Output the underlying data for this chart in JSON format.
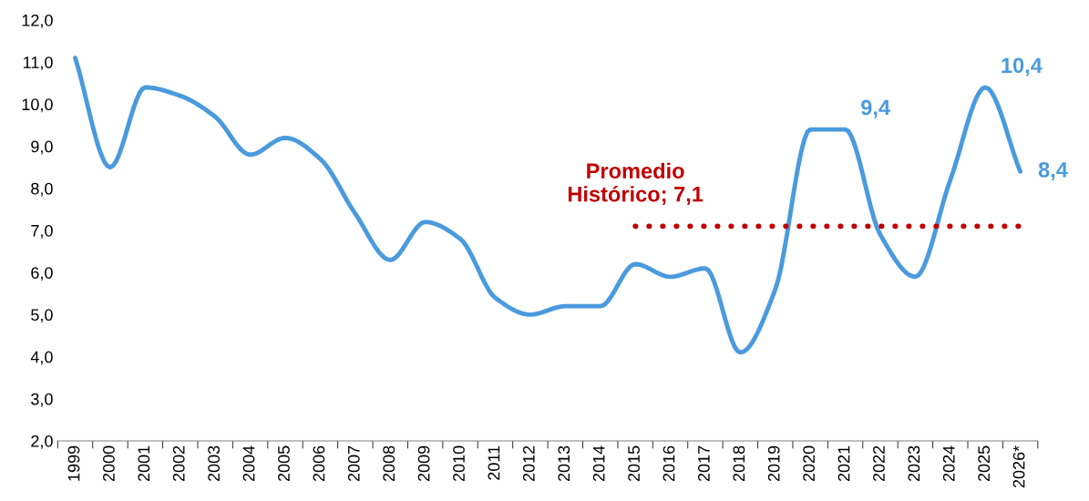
{
  "chart_data": {
    "type": "line",
    "categories": [
      "1999",
      "2000",
      "2001",
      "2002",
      "2003",
      "2004",
      "2005",
      "2006",
      "2007",
      "2008",
      "2009",
      "2010",
      "2011",
      "2012",
      "2013",
      "2014",
      "2015",
      "2016",
      "2017",
      "2018",
      "2019",
      "2020",
      "2021",
      "2022",
      "2023",
      "2024",
      "2025",
      "2026*"
    ],
    "series": [
      {
        "color": "#4a9ade",
        "line_style": "solid",
        "values": [
          11.1,
          8.5,
          10.4,
          10.2,
          9.7,
          8.8,
          9.2,
          8.7,
          7.4,
          6.3,
          7.2,
          6.8,
          5.4,
          5.0,
          5.2,
          5.2,
          6.2,
          5.9,
          6.1,
          4.1,
          5.6,
          9.4,
          9.4,
          6.9,
          5.9,
          8.2,
          10.4,
          8.4
        ],
        "value_labels": [
          null,
          null,
          null,
          null,
          null,
          null,
          null,
          null,
          null,
          null,
          null,
          null,
          null,
          null,
          null,
          null,
          null,
          null,
          null,
          null,
          null,
          null,
          "9,4",
          null,
          null,
          null,
          "10,4",
          "8,4"
        ]
      },
      {
        "name": "Promedio\nHistórico; 7,1",
        "color": "#c00000",
        "line_style": "dotted",
        "values": [
          null,
          null,
          null,
          null,
          null,
          null,
          null,
          null,
          null,
          null,
          null,
          null,
          null,
          null,
          null,
          null,
          7.1,
          7.1,
          7.1,
          7.1,
          7.1,
          7.1,
          7.1,
          7.1,
          7.1,
          7.1,
          7.1,
          7.1
        ]
      }
    ],
    "ylim": [
      2.0,
      12.0
    ],
    "yticks": [
      {
        "value": 2,
        "label": "2,0"
      },
      {
        "value": 3,
        "label": "3,0"
      },
      {
        "value": 4,
        "label": "4,0"
      },
      {
        "value": 5,
        "label": "5,0"
      },
      {
        "value": 6,
        "label": "6,0"
      },
      {
        "value": 7,
        "label": "7,0"
      },
      {
        "value": 8,
        "label": "8,0"
      },
      {
        "value": 9,
        "label": "9,0"
      },
      {
        "value": 10,
        "label": "10,0"
      },
      {
        "value": 11,
        "label": "11,0"
      },
      {
        "value": 12,
        "label": "12,0"
      }
    ],
    "grid": false,
    "legend": false,
    "marker": "none"
  }
}
